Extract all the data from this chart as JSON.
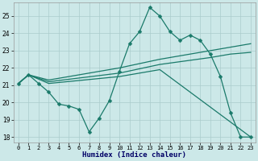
{
  "xlabel": "Humidex (Indice chaleur)",
  "bg_color": "#cce8e8",
  "grid_color": "#aacccc",
  "line_color": "#1a7a6a",
  "xlim": [
    -0.5,
    23.5
  ],
  "ylim": [
    17.7,
    25.8
  ],
  "yticks": [
    18,
    19,
    20,
    21,
    22,
    23,
    24,
    25
  ],
  "xticks": [
    0,
    1,
    2,
    3,
    4,
    5,
    6,
    7,
    8,
    9,
    10,
    11,
    12,
    13,
    14,
    15,
    16,
    17,
    18,
    19,
    20,
    21,
    22,
    23
  ],
  "line1_x": [
    0,
    1,
    2,
    3,
    4,
    5,
    6,
    7,
    8,
    9,
    10,
    11,
    12,
    13,
    14,
    15,
    16,
    17,
    18,
    19,
    20,
    21,
    22,
    23
  ],
  "line1_y": [
    21.1,
    21.6,
    21.1,
    20.6,
    19.9,
    19.8,
    19.6,
    18.3,
    19.1,
    20.1,
    21.8,
    23.4,
    24.1,
    25.5,
    25.0,
    24.1,
    23.6,
    23.9,
    23.6,
    22.8,
    21.5,
    19.4,
    18.0,
    18.0
  ],
  "line2_x": [
    0,
    1,
    3,
    10,
    14,
    19,
    21,
    23
  ],
  "line2_y": [
    21.1,
    21.6,
    21.3,
    22.0,
    22.5,
    23.0,
    23.2,
    23.4
  ],
  "line3_x": [
    0,
    1,
    3,
    10,
    14,
    19,
    21,
    23
  ],
  "line3_y": [
    21.1,
    21.6,
    21.2,
    21.7,
    22.2,
    22.6,
    22.8,
    22.9
  ],
  "line4_x": [
    0,
    1,
    3,
    10,
    14,
    23
  ],
  "line4_y": [
    21.1,
    21.6,
    21.1,
    21.5,
    21.9,
    18.0
  ]
}
